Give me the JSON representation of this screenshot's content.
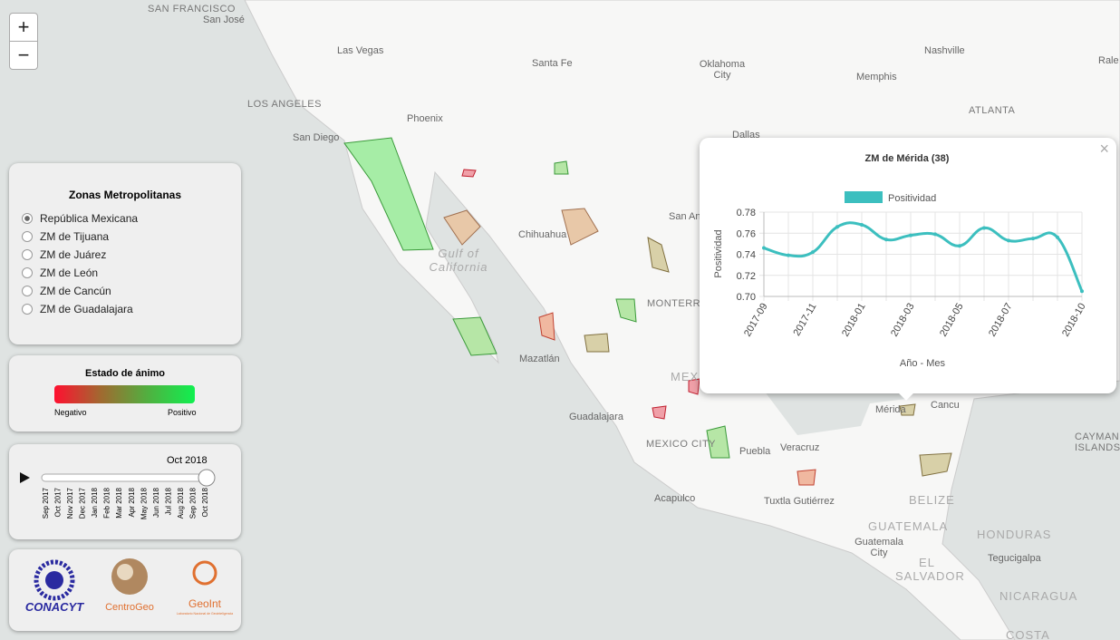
{
  "map": {
    "zoom_in": "+",
    "zoom_out": "−",
    "labels": [
      "SAN FRANCISCO",
      "San José",
      "Las Vegas",
      "Santa Fe",
      "Oklahoma City",
      "Nashville",
      "Rale",
      "LOS ANGELES",
      "Phoenix",
      "Memphis",
      "ATLANTA",
      "San Diego",
      "Dallas",
      "Gulf of California",
      "Chihuahua",
      "San An",
      "MONTERREY",
      "Mazatlán",
      "MEX",
      "Guadalajara",
      "MEXICO CITY",
      "Puebla",
      "Veracruz",
      "Acapulco",
      "Tuxtla Gutiérrez",
      "Mérida",
      "Cancu",
      "BELIZE",
      "GUATEMALA",
      "Guatemala City",
      "EL SALVADOR",
      "HONDURAS",
      "Tegucigalpa",
      "NICARAGUA",
      "COSTA",
      "CAYMAN ISLANDS"
    ]
  },
  "sidebar": {
    "zones": {
      "title": "Zonas Metropolitanas",
      "options": [
        "República Mexicana",
        "ZM de Tijuana",
        "ZM de Juárez",
        "ZM de León",
        "ZM de Cancún",
        "ZM de Guadalajara"
      ]
    },
    "mood": {
      "title": "Estado de ánimo",
      "negative": "Negativo",
      "positive": "Positivo"
    },
    "timeline": {
      "current": "Oct 2018",
      "months": [
        "Sep 2017",
        "Oct 2017",
        "Nov 2017",
        "Dec 2017",
        "Jan 2018",
        "Feb 2018",
        "Mar 2018",
        "Apr 2018",
        "May 2018",
        "Jun 2018",
        "Jul 2018",
        "Aug 2018",
        "Sep 2018",
        "Oct 2018"
      ]
    },
    "logos": [
      "CONACYT",
      "CentroGeo",
      "GeoInt",
      "Laboratorio Nacional de Geointeligencia"
    ]
  },
  "popup": {
    "close": "×"
  },
  "chart_data": {
    "type": "line",
    "title": "ZM de Mérida (38)",
    "x_label": "Año - Mes",
    "y_label": "Positividad",
    "categories": [
      "2017-09",
      null,
      "2017-11",
      null,
      "2018-01",
      null,
      "2018-03",
      null,
      "2018-05",
      null,
      "2018-07",
      null,
      null,
      "2018-10"
    ],
    "series": [
      {
        "name": "Positividad",
        "color": "#3cbfbf",
        "values": [
          0.746,
          0.739,
          0.742,
          0.766,
          0.768,
          0.754,
          0.758,
          0.759,
          0.748,
          0.765,
          0.753,
          0.755,
          0.756,
          0.705
        ]
      }
    ],
    "ylim": [
      0.7,
      0.78
    ],
    "yticks": [
      {
        "value": 0.7,
        "label": "0.70"
      },
      0.72,
      0.74,
      0.76,
      0.78
    ],
    "grid": true,
    "legend": "top"
  }
}
